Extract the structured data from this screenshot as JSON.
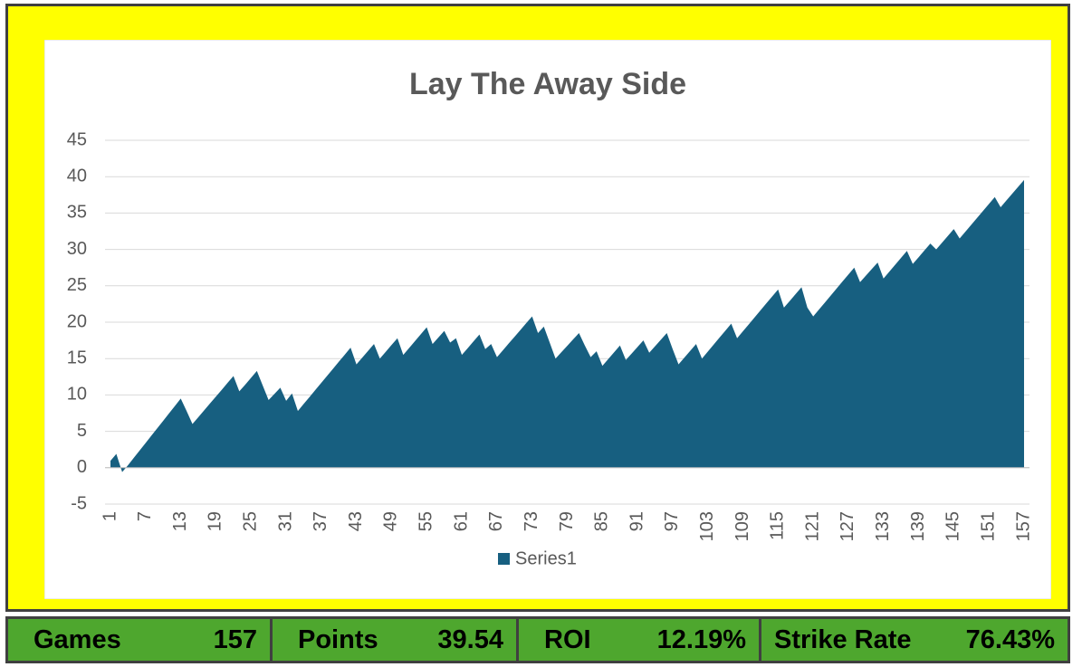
{
  "chart_data": {
    "type": "area",
    "title": "Lay The Away Side",
    "categories": [
      "1",
      null,
      null,
      null,
      null,
      null,
      "7",
      null,
      null,
      null,
      null,
      null,
      "13",
      null,
      null,
      null,
      null,
      null,
      "19",
      null,
      null,
      null,
      null,
      null,
      "25",
      null,
      null,
      null,
      null,
      null,
      "31",
      null,
      null,
      null,
      null,
      null,
      "37",
      null,
      null,
      null,
      null,
      null,
      "43",
      null,
      null,
      null,
      null,
      null,
      "49",
      null,
      null,
      null,
      null,
      null,
      "55",
      null,
      null,
      null,
      null,
      null,
      "61",
      null,
      null,
      null,
      null,
      null,
      "67",
      null,
      null,
      null,
      null,
      null,
      "73",
      null,
      null,
      null,
      null,
      null,
      "79",
      null,
      null,
      null,
      null,
      null,
      "85",
      null,
      null,
      null,
      null,
      null,
      "91",
      null,
      null,
      null,
      null,
      null,
      "97",
      null,
      null,
      null,
      null,
      null,
      "103",
      null,
      null,
      null,
      null,
      null,
      "109",
      null,
      null,
      null,
      null,
      null,
      "115",
      null,
      null,
      null,
      null,
      null,
      "121",
      null,
      null,
      null,
      null,
      null,
      "127",
      null,
      null,
      null,
      null,
      null,
      "133",
      null,
      null,
      null,
      null,
      null,
      "139",
      null,
      null,
      null,
      null,
      null,
      "145",
      null,
      null,
      null,
      null,
      null,
      "151",
      null,
      null,
      null,
      null,
      null,
      "157"
    ],
    "series": [
      {
        "name": "Series1",
        "color": "#175f80",
        "values": [
          0.95,
          1.9,
          -0.6,
          0.35,
          1.37,
          2.38,
          3.4,
          4.42,
          5.43,
          6.45,
          7.47,
          8.48,
          9.5,
          7.8,
          6.0,
          6.94,
          7.89,
          8.83,
          9.77,
          10.71,
          11.66,
          12.6,
          10.5,
          11.4,
          12.35,
          13.3,
          11.3,
          9.3,
          10.15,
          11.0,
          9.2,
          10.2,
          7.8,
          8.77,
          9.73,
          10.7,
          11.67,
          12.63,
          13.6,
          14.57,
          15.53,
          16.5,
          14.2,
          15.13,
          16.07,
          17.0,
          15.0,
          15.93,
          16.87,
          17.8,
          15.5,
          16.45,
          17.4,
          18.35,
          19.3,
          17.0,
          17.9,
          18.8,
          17.2,
          17.8,
          15.5,
          16.43,
          17.37,
          18.3,
          16.3,
          17.0,
          15.2,
          16.13,
          17.07,
          18.0,
          18.93,
          19.87,
          20.8,
          18.5,
          19.4,
          17.2,
          15.0,
          15.88,
          16.75,
          17.63,
          18.5,
          16.8,
          15.2,
          16.0,
          14.0,
          14.93,
          15.87,
          16.8,
          14.8,
          15.7,
          16.6,
          17.5,
          15.8,
          16.7,
          17.6,
          18.5,
          16.3,
          14.2,
          15.13,
          16.07,
          17.0,
          15.0,
          15.96,
          16.92,
          17.88,
          18.84,
          19.8,
          17.8,
          18.76,
          19.71,
          20.67,
          21.63,
          22.59,
          23.54,
          24.5,
          22.0,
          22.93,
          23.87,
          24.8,
          22.0,
          20.8,
          21.76,
          22.71,
          23.67,
          24.63,
          25.59,
          26.54,
          27.5,
          25.5,
          26.4,
          27.3,
          28.2,
          26.0,
          26.95,
          27.9,
          28.85,
          29.8,
          28.0,
          28.93,
          29.87,
          30.8,
          30.0,
          30.93,
          31.87,
          32.8,
          31.5,
          32.45,
          33.4,
          34.35,
          35.3,
          36.25,
          37.2,
          35.8,
          36.74,
          37.67,
          38.61,
          39.54
        ]
      }
    ],
    "ylim": [
      -5,
      45
    ],
    "yticks": [
      -5,
      0,
      5,
      10,
      15,
      20,
      25,
      30,
      35,
      40,
      45
    ],
    "grid": true,
    "legend": "bottom"
  },
  "summary": [
    {
      "label": "Games",
      "value": "157"
    },
    {
      "label": "Points",
      "value": "39.54"
    },
    {
      "label": "ROI",
      "value": "12.19%"
    },
    {
      "label": "Strike Rate",
      "value": "76.43%"
    }
  ]
}
